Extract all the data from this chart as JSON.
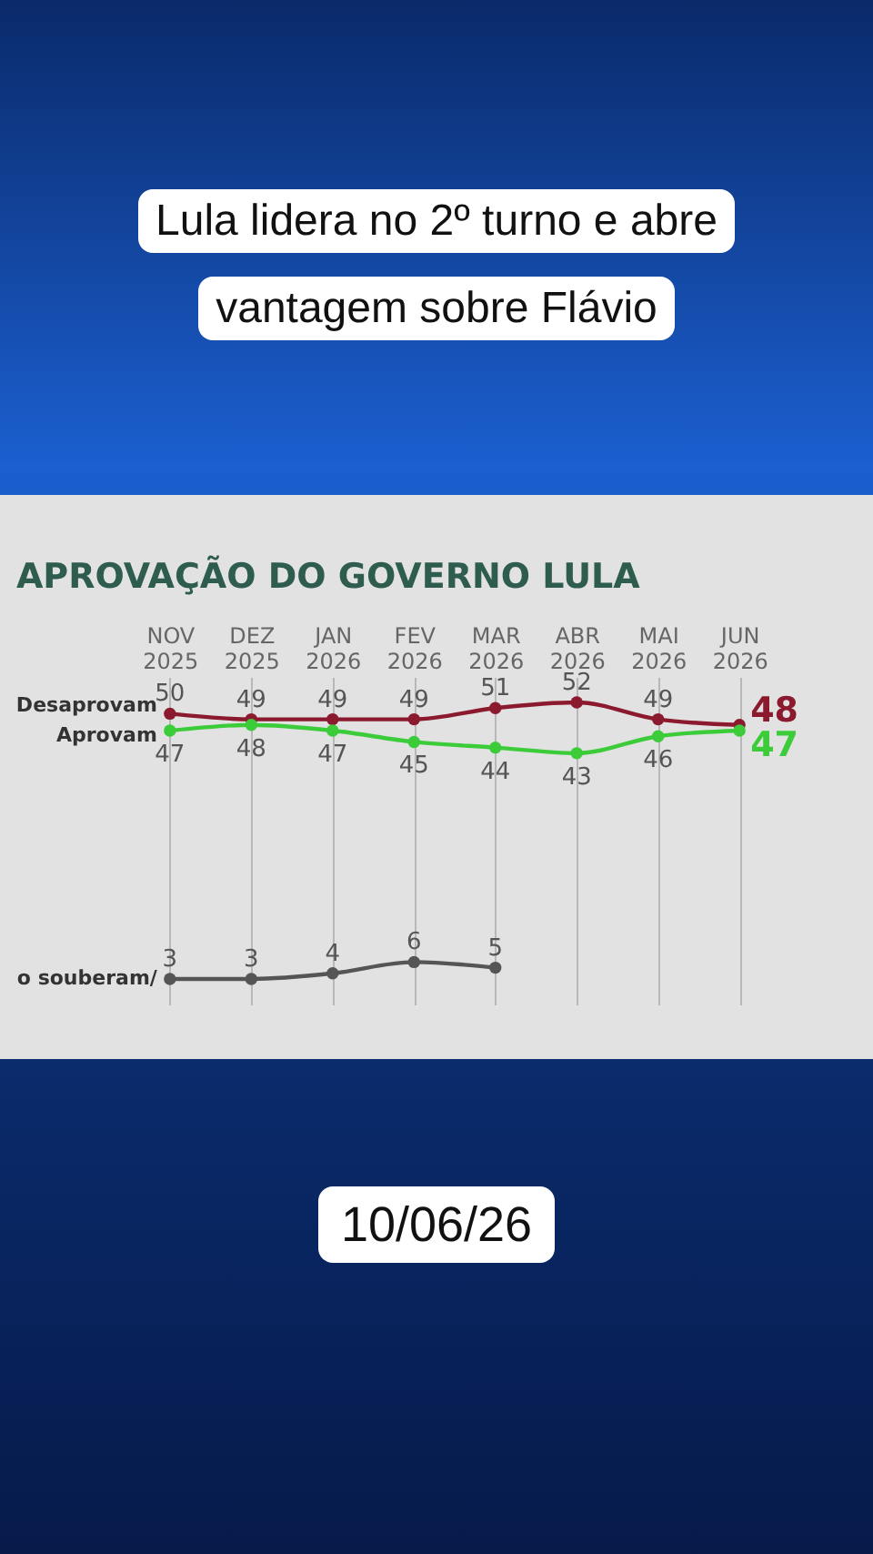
{
  "chart_data": {
    "type": "line",
    "title": "APROVAÇÃO DO GOVERNO LULA",
    "annotations": [
      "Lula lidera no 2º turno e abre vantagem sobre Flávio",
      "10/06/26"
    ],
    "categories": [
      "NOV 2025",
      "DEZ 2025",
      "JAN 2026",
      "FEV 2026",
      "MAR 2026",
      "ABR 2026",
      "MAI 2026",
      "JUN 2026"
    ],
    "series": [
      {
        "name": "Desaprovam",
        "color": "#8b1a2e",
        "values": [
          50,
          49,
          49,
          49,
          51,
          52,
          49,
          48
        ]
      },
      {
        "name": "Aprovam",
        "color": "#3ccc3a",
        "values": [
          47,
          48,
          47,
          45,
          44,
          43,
          46,
          47
        ]
      },
      {
        "name": "o souberam/",
        "color": "#555555",
        "values": [
          3,
          3,
          4,
          6,
          5,
          null,
          null,
          null
        ]
      }
    ],
    "data_labels": true,
    "grid": "x",
    "marker": "circle",
    "line_style": "solid"
  }
}
